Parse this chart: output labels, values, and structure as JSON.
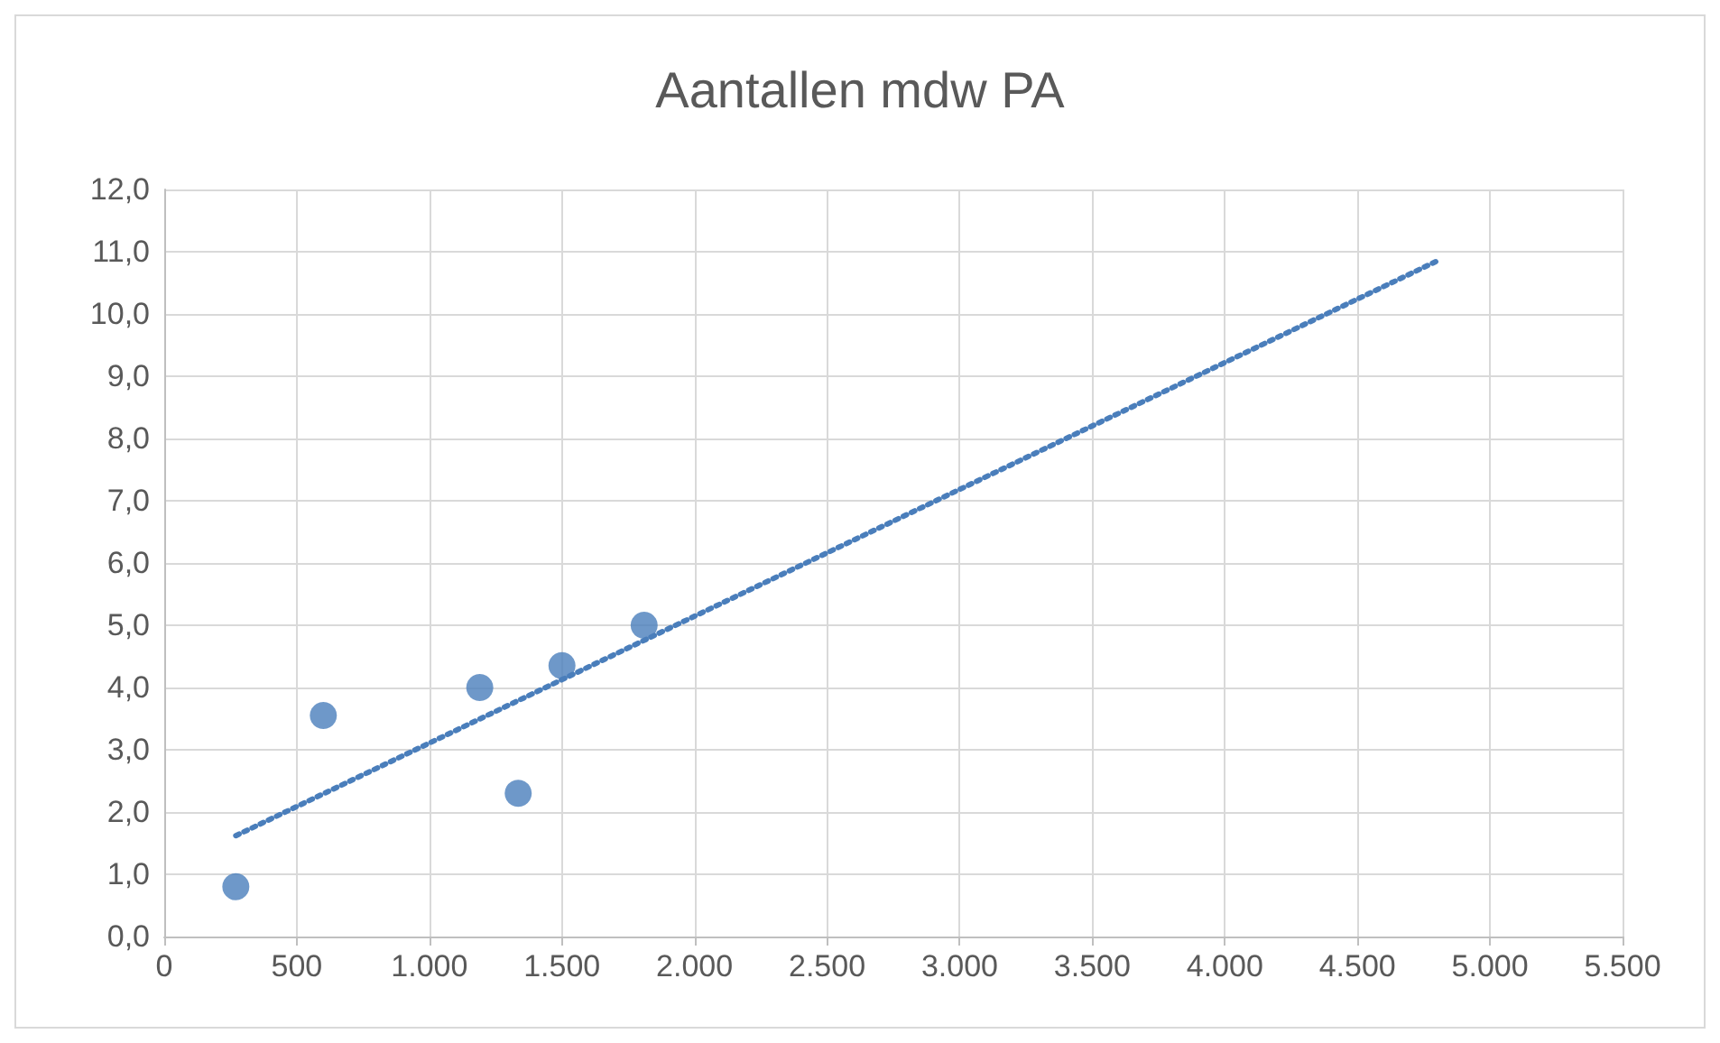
{
  "chart_data": {
    "type": "scatter",
    "title": "Aantallen mdw PA",
    "xlim": [
      0,
      5500
    ],
    "xticks": [
      0,
      500,
      {
        "value": 1000,
        "label": "1.000"
      },
      {
        "value": 1500,
        "label": "1.500"
      },
      {
        "value": 2000,
        "label": "2.000"
      },
      {
        "value": 2500,
        "label": "2.500"
      },
      {
        "value": 3000,
        "label": "3.000"
      },
      {
        "value": 3500,
        "label": "3.500"
      },
      {
        "value": 4000,
        "label": "4.000"
      },
      {
        "value": 4500,
        "label": "4.500"
      },
      {
        "value": 5000,
        "label": "5.000"
      },
      {
        "value": 5500,
        "label": "5.500"
      }
    ],
    "ylim": [
      0,
      12
    ],
    "yticks": [
      {
        "value": 0,
        "label": "0,0"
      },
      {
        "value": 1,
        "label": "1,0"
      },
      {
        "value": 2,
        "label": "2,0"
      },
      {
        "value": 3,
        "label": "3,0"
      },
      {
        "value": 4,
        "label": "4,0"
      },
      {
        "value": 5,
        "label": "5,0"
      },
      {
        "value": 6,
        "label": "6,0"
      },
      {
        "value": 7,
        "label": "7,0"
      },
      {
        "value": 8,
        "label": "8,0"
      },
      {
        "value": 9,
        "label": "9,0"
      },
      {
        "value": 10,
        "label": "10,0"
      },
      {
        "value": 11,
        "label": "11,0"
      },
      {
        "value": 12,
        "label": "12,0"
      }
    ],
    "grid": true,
    "series": [
      {
        "marker": "circle",
        "color": "#4a7ebb",
        "x": [
          270,
          600,
          1190,
          1335,
          1500,
          1810
        ],
        "values": [
          0.8,
          3.55,
          4.0,
          2.3,
          4.35,
          5.0
        ]
      },
      {
        "type": "line",
        "color": "#4a7ebb",
        "line_style": "dotted",
        "marker": "none",
        "x": [
          270,
          4800
        ],
        "values": [
          1.62,
          10.85
        ]
      }
    ]
  }
}
